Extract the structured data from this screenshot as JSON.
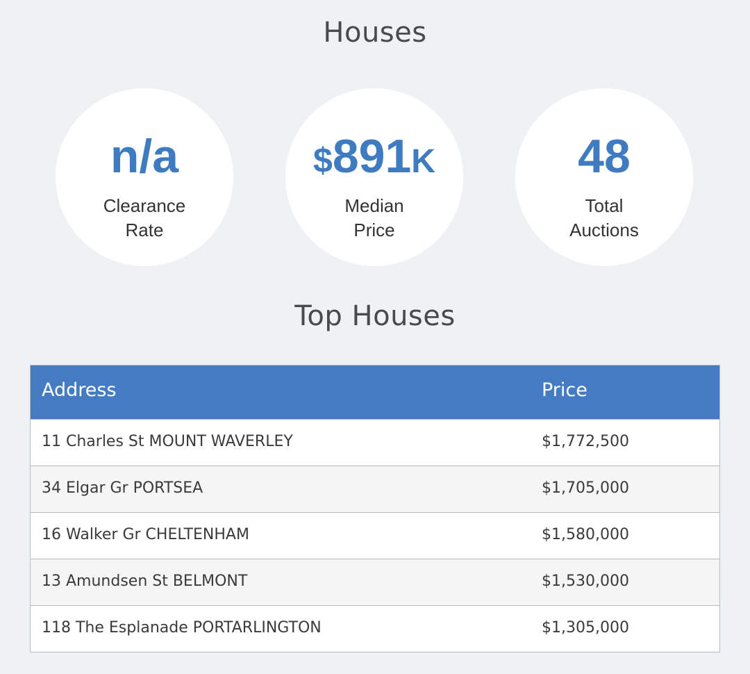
{
  "headings": {
    "houses": "Houses",
    "top_houses": "Top Houses"
  },
  "stats": {
    "clearance": {
      "value": "n/a",
      "label_line1": "Clearance",
      "label_line2": "Rate"
    },
    "median": {
      "currency": "$",
      "value": "891",
      "unit": "K",
      "label_line1": "Median",
      "label_line2": "Price"
    },
    "total": {
      "value": "48",
      "label_line1": "Total",
      "label_line2": "Auctions"
    }
  },
  "table": {
    "headers": {
      "address": "Address",
      "price": "Price"
    },
    "rows": [
      {
        "address": "11 Charles St MOUNT WAVERLEY",
        "price": "$1,772,500"
      },
      {
        "address": "34 Elgar Gr PORTSEA",
        "price": "$1,705,000"
      },
      {
        "address": "16 Walker Gr CHELTENHAM",
        "price": "$1,580,000"
      },
      {
        "address": "13 Amundsen St BELMONT",
        "price": "$1,530,000"
      },
      {
        "address": "118 The Esplanade PORTARLINGTON",
        "price": "$1,305,000"
      }
    ]
  },
  "colors": {
    "accent": "#3f7bc1",
    "header_bg": "#447bc2",
    "page_bg": "#eef2f5"
  }
}
